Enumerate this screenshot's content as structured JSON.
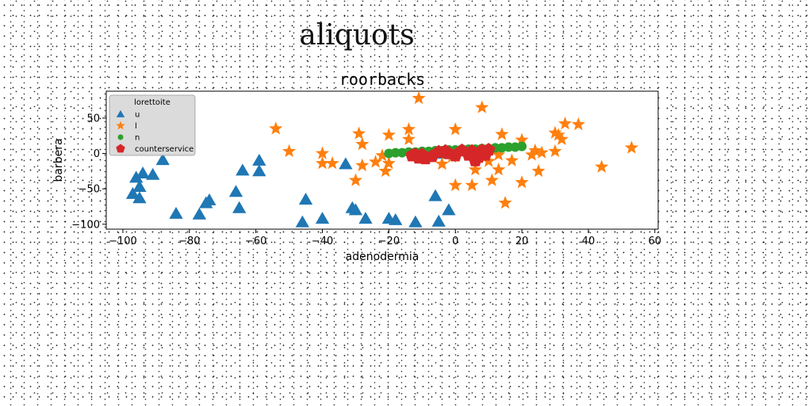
{
  "figure": {
    "suptitle": "aliquots"
  },
  "chart_data": {
    "type": "scatter",
    "title": "roorbacks",
    "xlabel": "adenodermia",
    "ylabel": "barbera",
    "xlim": [
      -105,
      61
    ],
    "ylim": [
      -107,
      88
    ],
    "xticks": [
      -100,
      -80,
      -60,
      -40,
      -20,
      0,
      20,
      40,
      60
    ],
    "yticks": [
      -100,
      -50,
      0,
      50
    ],
    "grid": false,
    "legend": {
      "title": "lorettoite",
      "position": "top-left"
    },
    "series": [
      {
        "name": "u",
        "marker": "triangle",
        "color": "#1f77b4",
        "points": [
          [
            -97,
            -57
          ],
          [
            -95,
            -47
          ],
          [
            -96,
            -34
          ],
          [
            -94,
            -28
          ],
          [
            -91,
            -30
          ],
          [
            -95,
            -63
          ],
          [
            -88,
            -9
          ],
          [
            -84,
            -85
          ],
          [
            -77,
            -86
          ],
          [
            -75,
            -70
          ],
          [
            -74,
            -66
          ],
          [
            -66,
            -54
          ],
          [
            -65,
            -77
          ],
          [
            -64,
            -24
          ],
          [
            -59,
            -10
          ],
          [
            -59,
            -25
          ],
          [
            -46,
            -97
          ],
          [
            -45,
            -65
          ],
          [
            -40,
            -92
          ],
          [
            -33,
            -15
          ],
          [
            -31,
            -77
          ],
          [
            -30,
            -80
          ],
          [
            -27,
            -92
          ],
          [
            -20,
            -92
          ],
          [
            -18,
            -94
          ],
          [
            -12,
            -97
          ],
          [
            -5,
            -96
          ],
          [
            -6,
            -60
          ],
          [
            -2,
            -80
          ],
          [
            -5,
            0
          ]
        ]
      },
      {
        "name": "l",
        "marker": "star",
        "color": "#ff7f0e",
        "points": [
          [
            -54,
            35
          ],
          [
            -50,
            3
          ],
          [
            -40,
            -14
          ],
          [
            -40,
            0
          ],
          [
            -37,
            -14
          ],
          [
            -29,
            28
          ],
          [
            -28,
            13
          ],
          [
            -28,
            -17
          ],
          [
            -30,
            -38
          ],
          [
            -22,
            -3
          ],
          [
            -21,
            -25
          ],
          [
            -24,
            -12
          ],
          [
            -20,
            -14
          ],
          [
            -20,
            26
          ],
          [
            -14,
            34
          ],
          [
            -14,
            20
          ],
          [
            -11,
            78
          ],
          [
            -4,
            -15
          ],
          [
            -1,
            -5
          ],
          [
            0,
            34
          ],
          [
            0,
            -45
          ],
          [
            5,
            -45
          ],
          [
            6,
            -23
          ],
          [
            7,
            -2
          ],
          [
            8,
            65
          ],
          [
            10,
            -11
          ],
          [
            11,
            -38
          ],
          [
            13,
            -23
          ],
          [
            13,
            -2
          ],
          [
            14,
            27
          ],
          [
            15,
            -70
          ],
          [
            17,
            -10
          ],
          [
            20,
            19
          ],
          [
            20,
            -41
          ],
          [
            23,
            -2
          ],
          [
            24,
            4
          ],
          [
            25,
            -25
          ],
          [
            26,
            1
          ],
          [
            30,
            3
          ],
          [
            30,
            29
          ],
          [
            31,
            26
          ],
          [
            32,
            20
          ],
          [
            33,
            42
          ],
          [
            37,
            41
          ],
          [
            44,
            -19
          ],
          [
            53,
            8
          ],
          [
            8,
            1
          ],
          [
            12,
            5
          ]
        ]
      },
      {
        "name": "n",
        "marker": "circle",
        "color": "#2ca02c",
        "points": [
          [
            -20,
            0
          ],
          [
            -18,
            1
          ],
          [
            -16,
            1
          ],
          [
            -14,
            2
          ],
          [
            -12,
            2
          ],
          [
            -10,
            3
          ],
          [
            -8,
            3
          ],
          [
            -6,
            4
          ],
          [
            -4,
            4
          ],
          [
            -2,
            5
          ],
          [
            0,
            5
          ],
          [
            2,
            6
          ],
          [
            4,
            6
          ],
          [
            6,
            6
          ],
          [
            8,
            7
          ],
          [
            10,
            7
          ],
          [
            12,
            8
          ],
          [
            14,
            8
          ],
          [
            16,
            9
          ],
          [
            18,
            9
          ],
          [
            20,
            10
          ]
        ]
      },
      {
        "name": "counterservice",
        "marker": "pentagon",
        "color": "#d62728",
        "points": [
          [
            -13,
            -3
          ],
          [
            -11,
            -6
          ],
          [
            -12,
            -2
          ],
          [
            -9,
            -7
          ],
          [
            -10,
            -2
          ],
          [
            -7,
            -4
          ],
          [
            -3,
            3
          ],
          [
            -2,
            0
          ],
          [
            0,
            -3
          ],
          [
            2,
            4
          ],
          [
            4,
            -2
          ],
          [
            5,
            3
          ],
          [
            6,
            -10
          ],
          [
            7,
            -5
          ],
          [
            8,
            4
          ],
          [
            9,
            -2
          ],
          [
            10,
            5
          ],
          [
            -5,
            2
          ]
        ]
      }
    ]
  }
}
